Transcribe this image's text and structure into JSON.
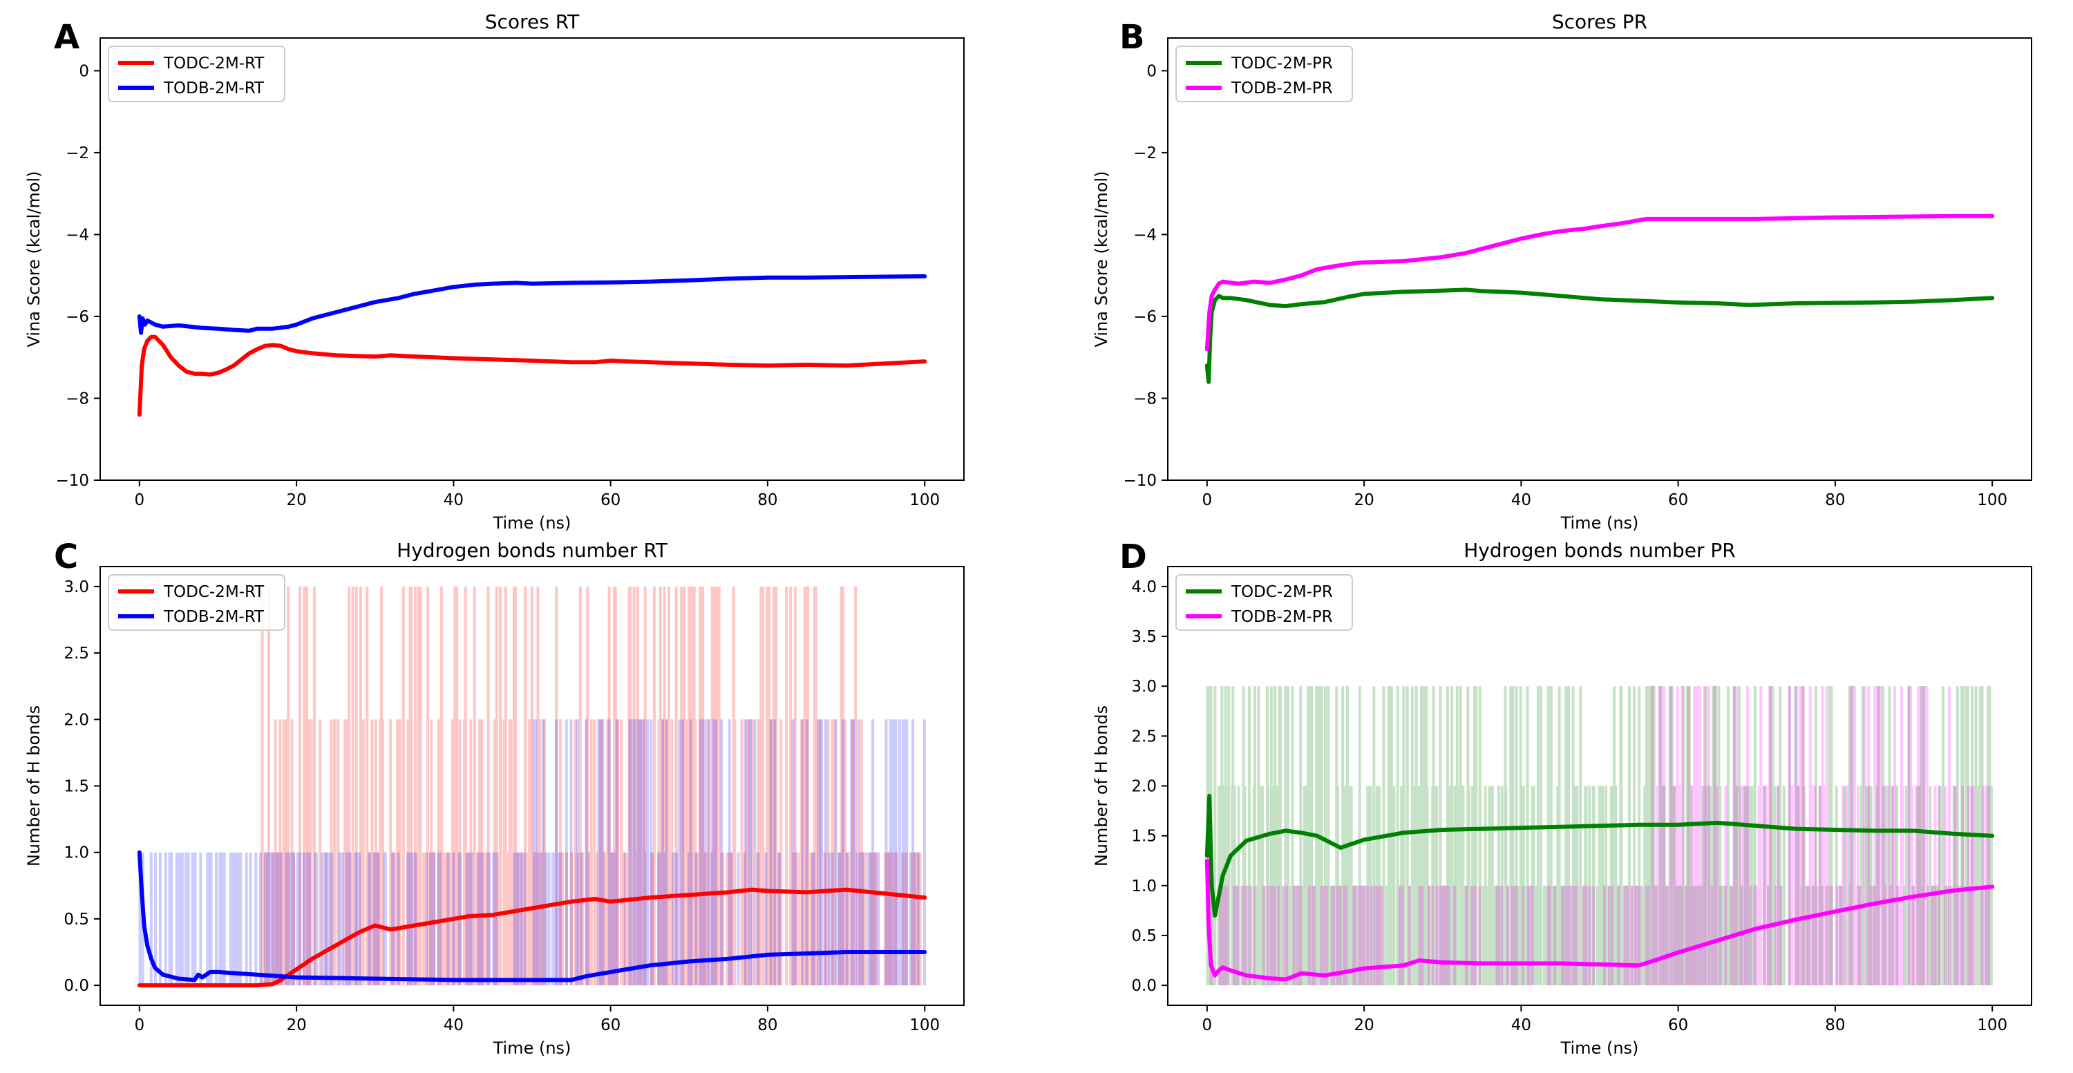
{
  "figure": {
    "panels": [
      "A",
      "B",
      "C",
      "D"
    ]
  },
  "chart_data": [
    {
      "panel": "A",
      "type": "line",
      "title": "Scores RT",
      "xlabel": "Time (ns)",
      "ylabel": "Vina Score (kcal/mol)",
      "xlim": [
        -5,
        105
      ],
      "ylim": [
        -10,
        0.8
      ],
      "xticks": [
        0,
        20,
        40,
        60,
        80,
        100
      ],
      "yticks": [
        0,
        -2,
        -4,
        -6,
        -8,
        -10
      ],
      "legend": "top-left",
      "series": [
        {
          "name": "TODC-2M-RT",
          "color": "#ff0000",
          "width": 6,
          "x": [
            0,
            0.3,
            0.6,
            1,
            1.5,
            2,
            3,
            4,
            5,
            6,
            7,
            8,
            9,
            10,
            11,
            12,
            13,
            14,
            15,
            16,
            17,
            18,
            19,
            20,
            22,
            25,
            28,
            30,
            32,
            35,
            40,
            45,
            50,
            55,
            58,
            60,
            62,
            65,
            70,
            75,
            80,
            85,
            90,
            95,
            100
          ],
          "y": [
            -8.4,
            -7.2,
            -6.8,
            -6.6,
            -6.5,
            -6.5,
            -6.7,
            -7.0,
            -7.2,
            -7.35,
            -7.4,
            -7.4,
            -7.42,
            -7.38,
            -7.3,
            -7.2,
            -7.05,
            -6.9,
            -6.8,
            -6.72,
            -6.7,
            -6.72,
            -6.8,
            -6.85,
            -6.9,
            -6.95,
            -6.97,
            -6.98,
            -6.95,
            -6.98,
            -7.02,
            -7.05,
            -7.08,
            -7.12,
            -7.12,
            -7.08,
            -7.1,
            -7.12,
            -7.15,
            -7.18,
            -7.2,
            -7.18,
            -7.2,
            -7.15,
            -7.1
          ]
        },
        {
          "name": "TODB-2M-RT",
          "color": "#0000ff",
          "width": 6,
          "x": [
            0,
            0.2,
            0.4,
            0.7,
            1,
            2,
            3,
            5,
            8,
            10,
            12,
            14,
            15,
            17,
            19,
            20,
            22,
            25,
            28,
            30,
            33,
            35,
            38,
            40,
            43,
            45,
            48,
            50,
            55,
            60,
            65,
            70,
            75,
            80,
            85,
            90,
            95,
            100
          ],
          "y": [
            -6.0,
            -6.4,
            -6.05,
            -6.2,
            -6.1,
            -6.2,
            -6.25,
            -6.22,
            -6.28,
            -6.3,
            -6.33,
            -6.35,
            -6.3,
            -6.3,
            -6.25,
            -6.2,
            -6.05,
            -5.9,
            -5.75,
            -5.65,
            -5.55,
            -5.45,
            -5.35,
            -5.28,
            -5.22,
            -5.2,
            -5.18,
            -5.2,
            -5.18,
            -5.17,
            -5.15,
            -5.12,
            -5.08,
            -5.05,
            -5.05,
            -5.04,
            -5.03,
            -5.02
          ]
        }
      ]
    },
    {
      "panel": "B",
      "type": "line",
      "title": "Scores PR",
      "xlabel": "Time (ns)",
      "ylabel": "Vina Score (kcal/mol)",
      "xlim": [
        -5,
        105
      ],
      "ylim": [
        -10,
        0.8
      ],
      "xticks": [
        0,
        20,
        40,
        60,
        80,
        100
      ],
      "yticks": [
        0,
        -2,
        -4,
        -6,
        -8,
        -10
      ],
      "legend": "top-left",
      "series": [
        {
          "name": "TODC-2M-PR",
          "color": "#008000",
          "width": 6,
          "x": [
            0,
            0.2,
            0.4,
            0.6,
            1,
            1.5,
            2,
            3,
            5,
            8,
            10,
            12,
            15,
            18,
            20,
            25,
            30,
            33,
            35,
            40,
            45,
            50,
            55,
            60,
            65,
            69,
            75,
            80,
            85,
            90,
            95,
            100
          ],
          "y": [
            -7.2,
            -7.6,
            -6.5,
            -5.9,
            -5.6,
            -5.5,
            -5.55,
            -5.55,
            -5.6,
            -5.72,
            -5.75,
            -5.7,
            -5.65,
            -5.52,
            -5.45,
            -5.4,
            -5.37,
            -5.35,
            -5.38,
            -5.42,
            -5.5,
            -5.58,
            -5.62,
            -5.66,
            -5.68,
            -5.72,
            -5.68,
            -5.67,
            -5.66,
            -5.64,
            -5.6,
            -5.55
          ]
        },
        {
          "name": "TODB-2M-PR",
          "color": "#ff00ff",
          "width": 6,
          "x": [
            0,
            0.3,
            0.6,
            1,
            1.5,
            2,
            4,
            6,
            8,
            10,
            12,
            14,
            16,
            18,
            20,
            25,
            30,
            33,
            35,
            38,
            40,
            43,
            45,
            48,
            50,
            53,
            55,
            56,
            60,
            65,
            70,
            75,
            80,
            85,
            90,
            95,
            100
          ],
          "y": [
            -6.8,
            -5.9,
            -5.5,
            -5.35,
            -5.2,
            -5.15,
            -5.2,
            -5.15,
            -5.18,
            -5.1,
            -5.0,
            -4.85,
            -4.78,
            -4.72,
            -4.68,
            -4.65,
            -4.55,
            -4.45,
            -4.35,
            -4.2,
            -4.1,
            -3.98,
            -3.92,
            -3.86,
            -3.8,
            -3.72,
            -3.65,
            -3.62,
            -3.62,
            -3.62,
            -3.62,
            -3.6,
            -3.58,
            -3.57,
            -3.56,
            -3.55,
            -3.55
          ]
        }
      ]
    },
    {
      "panel": "C",
      "type": "line",
      "title": "Hydrogen bonds number RT",
      "xlabel": "Time (ns)",
      "ylabel": "Number of H bonds",
      "xlim": [
        -5,
        105
      ],
      "ylim": [
        -0.15,
        3.15
      ],
      "xticks": [
        0,
        20,
        40,
        60,
        80,
        100
      ],
      "yticks": [
        0.0,
        0.5,
        1.0,
        1.5,
        2.0,
        2.5,
        3.0
      ],
      "legend": "top-left",
      "raw_series": [
        {
          "name": "TODC-2M-RT raw",
          "color": "#ff0000",
          "opacity": 0.22,
          "seed": 11,
          "segments": [
            [
              0,
              15,
              [
                0
              ]
            ],
            [
              15,
              50,
              [
                0,
                1,
                2,
                3
              ]
            ],
            [
              50,
              92,
              [
                0,
                1,
                2,
                3
              ]
            ],
            [
              92,
              100,
              [
                0,
                1
              ]
            ]
          ]
        },
        {
          "name": "TODB-2M-RT raw",
          "color": "#0000ff",
          "opacity": 0.2,
          "seed": 29,
          "segments": [
            [
              0,
              7,
              [
                0,
                1
              ]
            ],
            [
              7,
              50,
              [
                0,
                1
              ]
            ],
            [
              50,
              100,
              [
                0,
                1,
                2
              ]
            ]
          ]
        }
      ],
      "series": [
        {
          "name": "TODC-2M-RT",
          "color": "#ff0000",
          "width": 6,
          "x": [
            0,
            5,
            10,
            15,
            17,
            18,
            20,
            22,
            25,
            28,
            30,
            32,
            33,
            35,
            38,
            40,
            42,
            45,
            50,
            55,
            58,
            60,
            65,
            70,
            75,
            78,
            80,
            85,
            90,
            95,
            100
          ],
          "y": [
            0,
            0,
            0,
            0,
            0.01,
            0.04,
            0.12,
            0.2,
            0.3,
            0.4,
            0.45,
            0.42,
            0.43,
            0.45,
            0.48,
            0.5,
            0.52,
            0.53,
            0.58,
            0.63,
            0.65,
            0.63,
            0.66,
            0.68,
            0.7,
            0.72,
            0.71,
            0.7,
            0.72,
            0.69,
            0.66
          ]
        },
        {
          "name": "TODB-2M-RT",
          "color": "#0000ff",
          "width": 6,
          "x": [
            0,
            0.3,
            0.6,
            1,
            1.5,
            2,
            3,
            5,
            7,
            7.5,
            8,
            9,
            10,
            15,
            20,
            30,
            40,
            50,
            53,
            55,
            57,
            60,
            62,
            65,
            70,
            75,
            80,
            85,
            90,
            95,
            100
          ],
          "y": [
            1.0,
            0.7,
            0.45,
            0.3,
            0.2,
            0.13,
            0.08,
            0.05,
            0.04,
            0.08,
            0.06,
            0.1,
            0.1,
            0.08,
            0.06,
            0.05,
            0.04,
            0.04,
            0.04,
            0.04,
            0.07,
            0.1,
            0.12,
            0.15,
            0.18,
            0.2,
            0.23,
            0.24,
            0.25,
            0.25,
            0.25
          ]
        }
      ]
    },
    {
      "panel": "D",
      "type": "line",
      "title": "Hydrogen bonds number PR",
      "xlabel": "Time (ns)",
      "ylabel": "Number of H bonds",
      "xlim": [
        -5,
        105
      ],
      "ylim": [
        -0.2,
        4.2
      ],
      "xticks": [
        0,
        20,
        40,
        60,
        80,
        100
      ],
      "yticks": [
        0.0,
        0.5,
        1.0,
        1.5,
        2.0,
        2.5,
        3.0,
        3.5,
        4.0
      ],
      "legend": "top-left",
      "raw_series": [
        {
          "name": "TODC-2M-PR raw",
          "color": "#008000",
          "opacity": 0.22,
          "seed": 7,
          "segments": [
            [
              0,
              68,
              [
                1,
                2,
                3
              ]
            ],
            [
              68,
              100,
              [
                0,
                1,
                2,
                3
              ]
            ]
          ]
        },
        {
          "name": "TODB-2M-PR raw",
          "color": "#ff00ff",
          "opacity": 0.22,
          "seed": 43,
          "segments": [
            [
              0,
              56,
              [
                0,
                1
              ]
            ],
            [
              56,
              100,
              [
                0,
                1,
                2,
                3
              ]
            ]
          ]
        }
      ],
      "series": [
        {
          "name": "TODC-2M-PR",
          "color": "#008000",
          "width": 6,
          "x": [
            0,
            0.3,
            0.6,
            1,
            1.5,
            2,
            3,
            5,
            8,
            10,
            12,
            14,
            17,
            20,
            25,
            30,
            35,
            40,
            45,
            50,
            55,
            60,
            65,
            70,
            75,
            80,
            85,
            90,
            95,
            100
          ],
          "y": [
            1.3,
            1.9,
            1.0,
            0.7,
            0.9,
            1.1,
            1.3,
            1.45,
            1.52,
            1.55,
            1.53,
            1.5,
            1.38,
            1.46,
            1.53,
            1.56,
            1.57,
            1.58,
            1.59,
            1.6,
            1.61,
            1.61,
            1.63,
            1.6,
            1.57,
            1.56,
            1.55,
            1.55,
            1.52,
            1.5
          ]
        },
        {
          "name": "TODB-2M-PR",
          "color": "#ff00ff",
          "width": 6,
          "x": [
            0,
            0.2,
            0.5,
            1,
            1.5,
            2,
            3,
            5,
            8,
            10,
            12,
            15,
            18,
            20,
            25,
            27,
            30,
            35,
            40,
            45,
            50,
            55,
            57,
            60,
            65,
            70,
            75,
            80,
            85,
            90,
            95,
            100
          ],
          "y": [
            1.25,
            0.6,
            0.2,
            0.1,
            0.15,
            0.18,
            0.15,
            0.1,
            0.07,
            0.06,
            0.12,
            0.1,
            0.14,
            0.17,
            0.2,
            0.25,
            0.23,
            0.22,
            0.22,
            0.22,
            0.21,
            0.2,
            0.25,
            0.33,
            0.45,
            0.57,
            0.66,
            0.74,
            0.82,
            0.89,
            0.95,
            0.99
          ]
        }
      ]
    }
  ]
}
